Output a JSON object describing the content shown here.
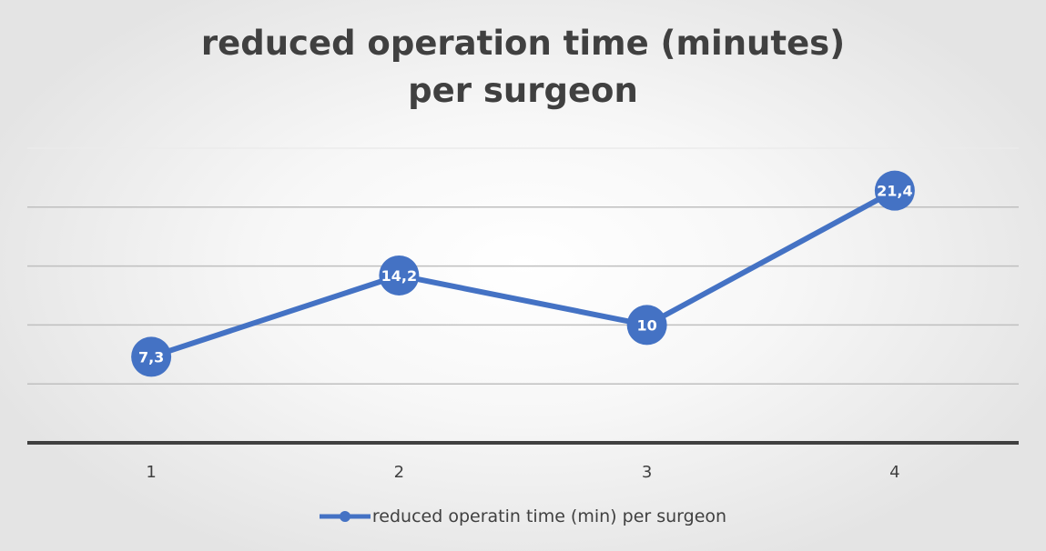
{
  "chart_data": {
    "type": "line",
    "title_lines": [
      "reduced operation time (minutes)",
      "per surgeon"
    ],
    "categories": [
      "1",
      "2",
      "3",
      "4"
    ],
    "series": [
      {
        "name": "reduced operatin time (min) per surgeon",
        "values": [
          7.3,
          14.2,
          10,
          21.4
        ],
        "data_labels": [
          "7,3",
          "14,2",
          "10",
          "21,4"
        ],
        "color": "#4472C4"
      }
    ],
    "ylim": [
      0,
      25
    ],
    "y_gridline_step": 5,
    "y_tick_labels_shown": false,
    "grid": true,
    "legend": "bottom",
    "xlabel": "",
    "ylabel": ""
  }
}
